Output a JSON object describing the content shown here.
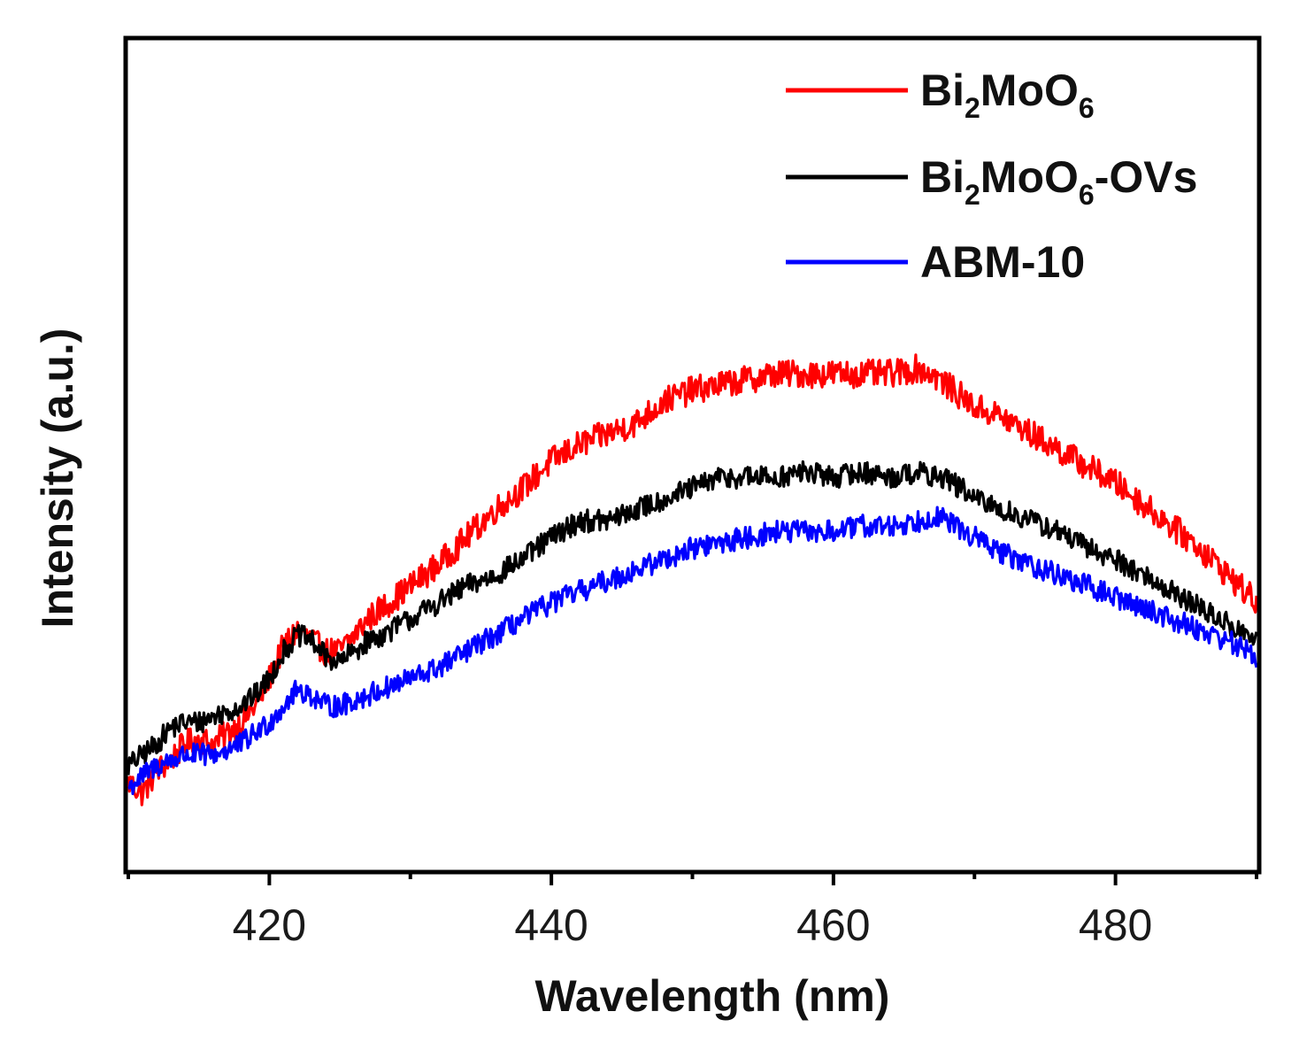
{
  "chart_data": {
    "type": "line",
    "title": "",
    "xlabel": "Wavelength (nm)",
    "ylabel": "Intensity (a.u.)",
    "xlim": [
      410,
      490
    ],
    "ylim": [
      0,
      100
    ],
    "xticks": [
      420,
      440,
      460,
      480
    ],
    "xticks_minor": [
      410,
      430,
      450,
      470,
      490
    ],
    "yticks": [],
    "grid": false,
    "legend_position": "top-right",
    "series": [
      {
        "name": "Bi2MoO6",
        "label_parts": [
          "Bi",
          "2",
          "MoO",
          "6",
          ""
        ],
        "color": "#ff0000",
        "x": [
          410,
          411,
          412,
          413,
          414,
          415,
          416,
          417,
          418,
          419,
          420,
          421,
          422,
          423,
          424,
          425,
          426,
          427,
          428,
          430,
          432,
          434,
          436,
          438,
          440,
          442,
          444,
          446,
          448,
          450,
          452,
          454,
          456,
          458,
          460,
          462,
          464,
          466,
          467,
          468,
          470,
          472,
          474,
          476,
          478,
          480,
          482,
          484,
          486,
          488,
          490
        ],
        "y": [
          10,
          8,
          12,
          14,
          17,
          18,
          17,
          19,
          21,
          24,
          29,
          35,
          38,
          36,
          34,
          34,
          37,
          40,
          42,
          46,
          50,
          55,
          60,
          64,
          69,
          72,
          74,
          76,
          80,
          82,
          83,
          84,
          85,
          85,
          85,
          85,
          85,
          86,
          85,
          83,
          79,
          77,
          74,
          71,
          68,
          65,
          61,
          57,
          53,
          48,
          43
        ],
        "noise": 1.6
      },
      {
        "name": "Bi2MoO6-OVs",
        "label_parts": [
          "Bi",
          "2",
          "MoO",
          "6",
          "-OVs"
        ],
        "color": "#000000",
        "x": [
          410,
          411,
          412,
          413,
          414,
          415,
          416,
          417,
          418,
          419,
          420,
          421,
          422,
          423,
          424,
          425,
          426,
          427,
          428,
          430,
          432,
          434,
          436,
          438,
          440,
          442,
          444,
          446,
          448,
          450,
          452,
          454,
          456,
          458,
          460,
          462,
          464,
          466,
          467,
          468,
          470,
          472,
          474,
          476,
          478,
          480,
          482,
          484,
          486,
          488,
          490
        ],
        "y": [
          13,
          15,
          17,
          20,
          21,
          21,
          22,
          23,
          24,
          26,
          29,
          34,
          37,
          36,
          33,
          32,
          34,
          36,
          37,
          40,
          43,
          46,
          48,
          51,
          55,
          58,
          58,
          60,
          62,
          64,
          66,
          66,
          66,
          67,
          66,
          67,
          66,
          67,
          66,
          66,
          62,
          60,
          58,
          56,
          53,
          51,
          48,
          45,
          42,
          39,
          36
        ],
        "noise": 1.3
      },
      {
        "name": "ABM-10",
        "label_parts": [
          "ABM-10",
          "",
          "",
          "",
          ""
        ],
        "color": "#0000ff",
        "x": [
          410,
          411,
          412,
          413,
          414,
          415,
          416,
          417,
          418,
          419,
          420,
          421,
          422,
          423,
          424,
          425,
          426,
          427,
          428,
          430,
          432,
          434,
          436,
          438,
          440,
          442,
          444,
          446,
          448,
          450,
          452,
          454,
          456,
          458,
          460,
          462,
          464,
          466,
          467,
          468,
          470,
          472,
          474,
          476,
          478,
          480,
          482,
          484,
          486,
          488,
          490
        ],
        "y": [
          9,
          11,
          13,
          14,
          15,
          15,
          15,
          16,
          17,
          19,
          21,
          24,
          27,
          26,
          24,
          24,
          25,
          26,
          27,
          29,
          31,
          34,
          37,
          40,
          43,
          45,
          47,
          49,
          51,
          53,
          54,
          55,
          56,
          56,
          56,
          57,
          57,
          58,
          59,
          58,
          55,
          52,
          50,
          48,
          46,
          44,
          42,
          40,
          38,
          36,
          33
        ],
        "noise": 1.3
      }
    ]
  }
}
